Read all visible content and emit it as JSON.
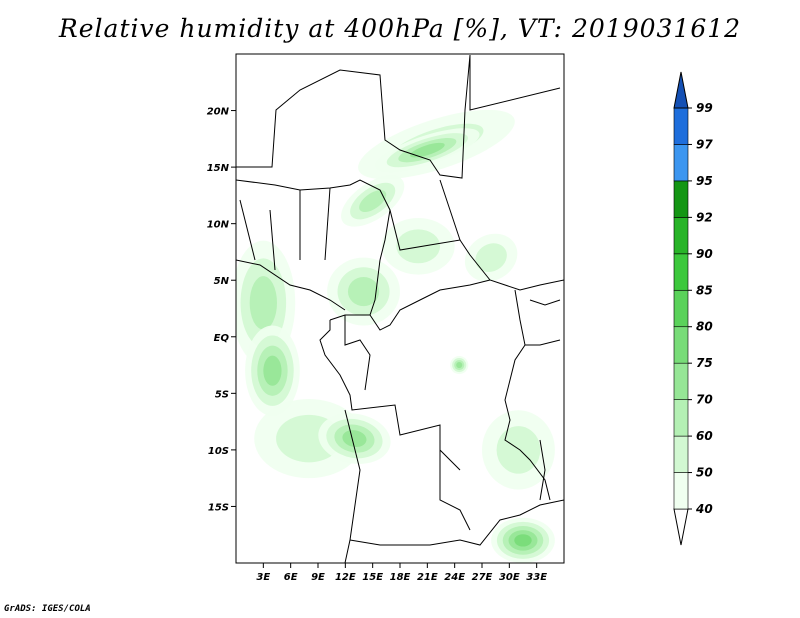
{
  "title": "Relative humidity at 400hPa [%], VT: 2019031612",
  "credit": "GrADS: IGES/COLA",
  "map": {
    "lon_range": [
      0,
      36
    ],
    "lat_range": [
      -20,
      25
    ],
    "lat_ticks": [
      {
        "value": 20,
        "label": "20N"
      },
      {
        "value": 15,
        "label": "15N"
      },
      {
        "value": 10,
        "label": "10N"
      },
      {
        "value": 5,
        "label": "5N"
      },
      {
        "value": 0,
        "label": "EQ"
      },
      {
        "value": -5,
        "label": "5S"
      },
      {
        "value": -10,
        "label": "10S"
      },
      {
        "value": -15,
        "label": "15S"
      }
    ],
    "lon_ticks": [
      {
        "value": 3,
        "label": "3E"
      },
      {
        "value": 6,
        "label": "6E"
      },
      {
        "value": 9,
        "label": "9E"
      },
      {
        "value": 12,
        "label": "12E"
      },
      {
        "value": 15,
        "label": "15E"
      },
      {
        "value": 18,
        "label": "18E"
      },
      {
        "value": 21,
        "label": "21E"
      },
      {
        "value": 24,
        "label": "24E"
      },
      {
        "value": 27,
        "label": "27E"
      },
      {
        "value": 30,
        "label": "30E"
      },
      {
        "value": 33,
        "label": "33E"
      }
    ]
  },
  "colorbar": {
    "levels": [
      "40",
      "50",
      "60",
      "70",
      "75",
      "80",
      "85",
      "90",
      "92",
      "95",
      "97",
      "99"
    ],
    "colors": [
      "#f0fff0",
      "#d2f8d2",
      "#b4f0b4",
      "#96e696",
      "#78dc78",
      "#5ad25a",
      "#3cc83c",
      "#28b428",
      "#149614",
      "#3c96f0",
      "#1e6edc",
      "#1450b4"
    ]
  },
  "humidity_areas": [
    {
      "lon": 22,
      "lat": 17,
      "rx": 9,
      "ry": 2.2,
      "rot": -18,
      "level": 1
    },
    {
      "lon": 21,
      "lat": 16.5,
      "rx": 6,
      "ry": 1.3,
      "rot": -18,
      "level": 3
    },
    {
      "lon": 15,
      "lat": 12,
      "rx": 4,
      "ry": 1.6,
      "rot": -35,
      "level": 2
    },
    {
      "lon": 3,
      "lat": 3,
      "rx": 3.5,
      "ry": 5.5,
      "rot": 0,
      "level": 2
    },
    {
      "lon": 4,
      "lat": -3,
      "rx": 3,
      "ry": 4,
      "rot": 0,
      "level": 3
    },
    {
      "lon": 8,
      "lat": -9,
      "rx": 6,
      "ry": 3.5,
      "rot": 0,
      "level": 1
    },
    {
      "lon": 13,
      "lat": -9,
      "rx": 4,
      "ry": 2.2,
      "rot": 10,
      "level": 3
    },
    {
      "lon": 14,
      "lat": 4,
      "rx": 4,
      "ry": 3,
      "rot": 0,
      "level": 2
    },
    {
      "lon": 20,
      "lat": 8,
      "rx": 4,
      "ry": 2.5,
      "rot": 0,
      "level": 1
    },
    {
      "lon": 28,
      "lat": 7,
      "rx": 3,
      "ry": 2,
      "rot": -30,
      "level": 1
    },
    {
      "lon": 24.5,
      "lat": -2.5,
      "rx": 1,
      "ry": 0.8,
      "rot": 0,
      "level": 3
    },
    {
      "lon": 31,
      "lat": -10,
      "rx": 4,
      "ry": 3.5,
      "rot": 0,
      "level": 1
    },
    {
      "lon": 31.5,
      "lat": -18,
      "rx": 3.5,
      "ry": 2,
      "rot": 0,
      "level": 4
    }
  ]
}
